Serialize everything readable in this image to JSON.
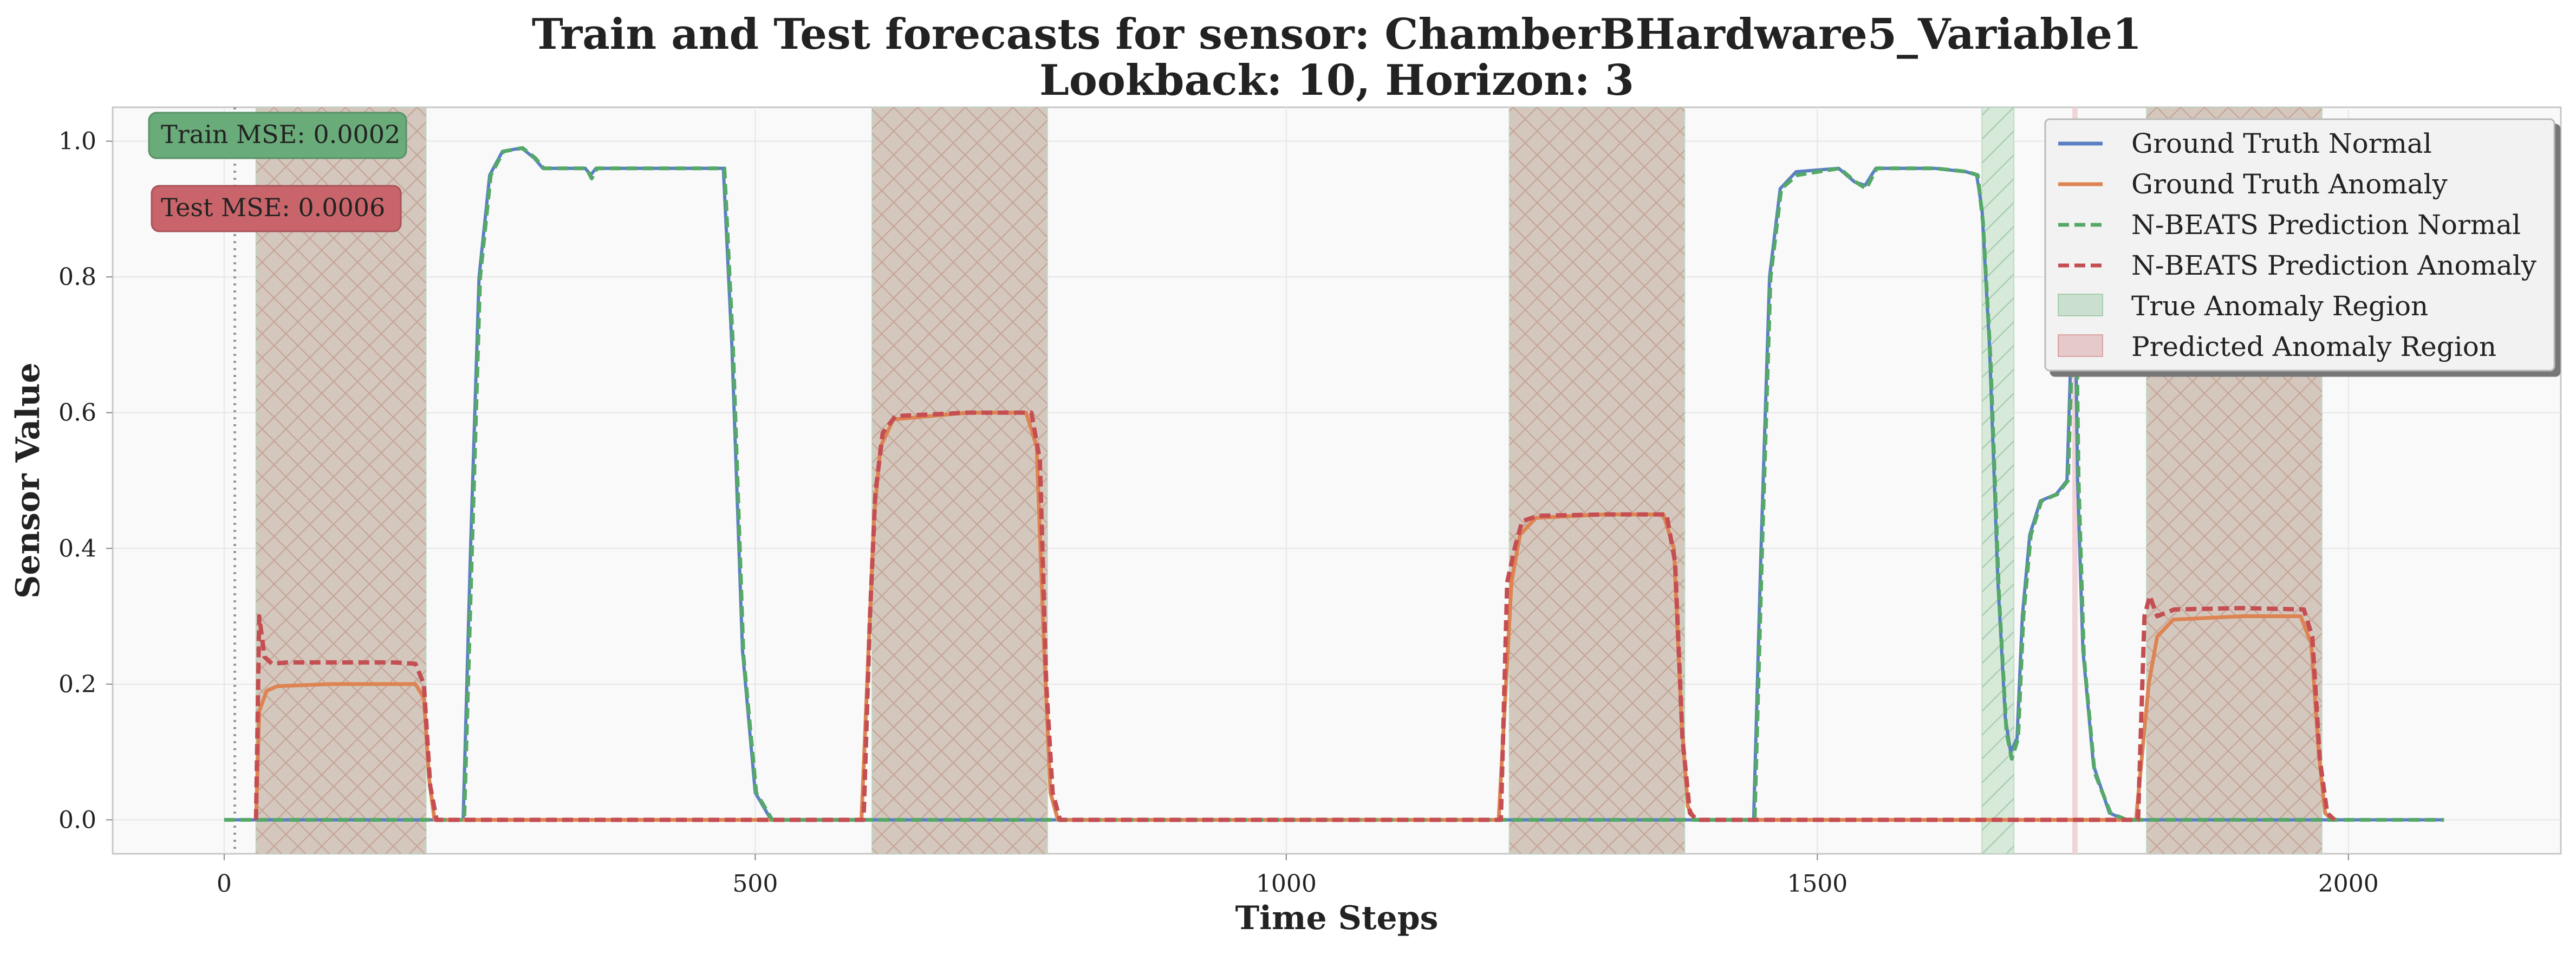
{
  "chart_data": {
    "type": "line",
    "title_line1": "Train and Test forecasts for sensor: ChamberBHardware5_Variable1",
    "title_line2": "Lookback: 10, Horizon: 3",
    "xlabel": "Time Steps",
    "ylabel": "Sensor Value",
    "xlim": [
      -105,
      2200
    ],
    "ylim": [
      -0.05,
      1.05
    ],
    "x_ticks": [
      0,
      500,
      1000,
      1500,
      2000
    ],
    "y_ticks": [
      0.0,
      0.2,
      0.4,
      0.6,
      0.8,
      1.0
    ],
    "x_tick_labels": [
      "0",
      "500",
      "1000",
      "1500",
      "2000"
    ],
    "y_tick_labels": [
      "0.0",
      "0.2",
      "0.4",
      "0.6",
      "0.8",
      "1.0"
    ],
    "grid": true,
    "legend_position": "top-right",
    "train_test_split_x": 10,
    "annotations": {
      "train_mse": "Train MSE: 0.0002",
      "test_mse": "Test MSE: 0.0006"
    },
    "legend": [
      {
        "label": "Ground Truth Normal",
        "kind": "solid",
        "color": "#5a7fc3"
      },
      {
        "label": "Ground Truth Anomaly",
        "kind": "solid",
        "color": "#dd8452"
      },
      {
        "label": "N-BEATS Prediction Normal",
        "kind": "dashed",
        "color": "#55a868"
      },
      {
        "label": "N-BEATS Prediction Anomaly",
        "kind": "dashed",
        "color": "#c44e52"
      },
      {
        "label": "True Anomaly Region",
        "kind": "patch",
        "color": "#55a868"
      },
      {
        "label": "Predicted Anomaly Region",
        "kind": "patch",
        "color": "#c44e52"
      }
    ],
    "colors": {
      "gt_normal": "#5a7fc3",
      "gt_anomaly": "#dd8452",
      "pred_normal": "#55a868",
      "pred_anomaly": "#c44e52",
      "overlap_region": "#d3c6bb",
      "true_region": "#d4e9d7",
      "predicted_region": "#efcfd3",
      "train_box": "#6aab7a",
      "test_box": "#c9656a"
    },
    "true_anomaly_regions": [
      [
        30,
        190
      ],
      [
        610,
        775
      ],
      [
        1210,
        1375
      ],
      [
        1655,
        1685
      ],
      [
        1810,
        1975
      ]
    ],
    "predicted_anomaly_regions": [
      [
        30,
        190
      ],
      [
        610,
        775
      ],
      [
        1210,
        1375
      ],
      [
        1740,
        1745
      ],
      [
        1810,
        1975
      ]
    ],
    "series": [
      {
        "name": "Ground Truth Normal",
        "points": [
          [
            0,
            0
          ],
          [
            225,
            0
          ],
          [
            232,
            0.4
          ],
          [
            240,
            0.8
          ],
          [
            250,
            0.95
          ],
          [
            262,
            0.985
          ],
          [
            280,
            0.99
          ],
          [
            292,
            0.975
          ],
          [
            300,
            0.96
          ],
          [
            340,
            0.96
          ],
          [
            345,
            0.95
          ],
          [
            350,
            0.96
          ],
          [
            470,
            0.96
          ],
          [
            478,
            0.7
          ],
          [
            488,
            0.25
          ],
          [
            500,
            0.04
          ],
          [
            515,
            0
          ],
          [
            1440,
            0
          ],
          [
            1447,
            0.4
          ],
          [
            1455,
            0.8
          ],
          [
            1465,
            0.93
          ],
          [
            1480,
            0.955
          ],
          [
            1520,
            0.96
          ],
          [
            1535,
            0.94
          ],
          [
            1545,
            0.935
          ],
          [
            1555,
            0.96
          ],
          [
            1575,
            0.96
          ],
          [
            1610,
            0.96
          ],
          [
            1640,
            0.955
          ],
          [
            1650,
            0.95
          ],
          [
            1655,
            0.9
          ],
          [
            1662,
            0.7
          ],
          [
            1670,
            0.35
          ],
          [
            1677,
            0.15
          ],
          [
            1682,
            0.1
          ],
          [
            1688,
            0.12
          ],
          [
            1693,
            0.3
          ],
          [
            1700,
            0.42
          ],
          [
            1710,
            0.47
          ],
          [
            1725,
            0.48
          ],
          [
            1735,
            0.5
          ],
          [
            1742,
            0.85
          ],
          [
            1745,
            0.5
          ],
          [
            1750,
            0.25
          ],
          [
            1760,
            0.08
          ],
          [
            1775,
            0.01
          ],
          [
            1790,
            0
          ],
          [
            2090,
            0
          ]
        ]
      },
      {
        "name": "Ground Truth Anomaly",
        "points": [
          [
            30,
            0
          ],
          [
            33,
            0.16
          ],
          [
            40,
            0.19
          ],
          [
            50,
            0.197
          ],
          [
            100,
            0.2
          ],
          [
            160,
            0.2
          ],
          [
            180,
            0.2
          ],
          [
            188,
            0.18
          ],
          [
            193,
            0.06
          ],
          [
            198,
            0
          ],
          [
            210,
            0
          ],
          [
            600,
            0
          ],
          [
            612,
            0.45
          ],
          [
            618,
            0.55
          ],
          [
            630,
            0.59
          ],
          [
            700,
            0.6
          ],
          [
            755,
            0.6
          ],
          [
            765,
            0.55
          ],
          [
            772,
            0.25
          ],
          [
            778,
            0.04
          ],
          [
            785,
            0
          ],
          [
            1200,
            0
          ],
          [
            1212,
            0.35
          ],
          [
            1220,
            0.42
          ],
          [
            1235,
            0.445
          ],
          [
            1300,
            0.45
          ],
          [
            1355,
            0.45
          ],
          [
            1365,
            0.4
          ],
          [
            1372,
            0.15
          ],
          [
            1378,
            0.02
          ],
          [
            1385,
            0
          ],
          [
            1800,
            0
          ],
          [
            1812,
            0.2
          ],
          [
            1820,
            0.27
          ],
          [
            1835,
            0.295
          ],
          [
            1900,
            0.3
          ],
          [
            1955,
            0.3
          ],
          [
            1965,
            0.26
          ],
          [
            1972,
            0.1
          ],
          [
            1978,
            0.01
          ],
          [
            1985,
            0
          ]
        ]
      },
      {
        "name": "N-BEATS Prediction Normal",
        "points": [
          [
            0,
            0
          ],
          [
            226,
            0
          ],
          [
            233,
            0.38
          ],
          [
            241,
            0.8
          ],
          [
            251,
            0.95
          ],
          [
            263,
            0.985
          ],
          [
            281,
            0.99
          ],
          [
            293,
            0.975
          ],
          [
            301,
            0.96
          ],
          [
            341,
            0.96
          ],
          [
            346,
            0.945
          ],
          [
            351,
            0.96
          ],
          [
            471,
            0.96
          ],
          [
            479,
            0.7
          ],
          [
            489,
            0.24
          ],
          [
            501,
            0.04
          ],
          [
            516,
            0
          ],
          [
            1441,
            0
          ],
          [
            1448,
            0.4
          ],
          [
            1456,
            0.8
          ],
          [
            1466,
            0.93
          ],
          [
            1481,
            0.95
          ],
          [
            1521,
            0.96
          ],
          [
            1536,
            0.94
          ],
          [
            1546,
            0.93
          ],
          [
            1556,
            0.96
          ],
          [
            1611,
            0.96
          ],
          [
            1641,
            0.955
          ],
          [
            1651,
            0.95
          ],
          [
            1656,
            0.88
          ],
          [
            1663,
            0.68
          ],
          [
            1671,
            0.33
          ],
          [
            1678,
            0.13
          ],
          [
            1683,
            0.09
          ],
          [
            1689,
            0.12
          ],
          [
            1694,
            0.3
          ],
          [
            1701,
            0.42
          ],
          [
            1711,
            0.47
          ],
          [
            1726,
            0.48
          ],
          [
            1736,
            0.5
          ],
          [
            1743,
            0.85
          ],
          [
            1746,
            0.5
          ],
          [
            1751,
            0.24
          ],
          [
            1761,
            0.07
          ],
          [
            1776,
            0.01
          ],
          [
            1791,
            0
          ],
          [
            2090,
            0
          ]
        ]
      },
      {
        "name": "N-BEATS Prediction Anomaly",
        "points": [
          [
            30,
            0
          ],
          [
            33,
            0.3
          ],
          [
            38,
            0.24
          ],
          [
            45,
            0.23
          ],
          [
            60,
            0.232
          ],
          [
            100,
            0.232
          ],
          [
            160,
            0.232
          ],
          [
            180,
            0.23
          ],
          [
            188,
            0.2
          ],
          [
            194,
            0.05
          ],
          [
            200,
            0
          ],
          [
            602,
            0
          ],
          [
            608,
            0.3
          ],
          [
            613,
            0.48
          ],
          [
            620,
            0.57
          ],
          [
            632,
            0.595
          ],
          [
            700,
            0.6
          ],
          [
            760,
            0.6
          ],
          [
            768,
            0.53
          ],
          [
            774,
            0.2
          ],
          [
            780,
            0.04
          ],
          [
            787,
            0
          ],
          [
            1202,
            0
          ],
          [
            1208,
            0.35
          ],
          [
            1215,
            0.4
          ],
          [
            1222,
            0.44
          ],
          [
            1237,
            0.448
          ],
          [
            1300,
            0.45
          ],
          [
            1358,
            0.45
          ],
          [
            1366,
            0.38
          ],
          [
            1373,
            0.12
          ],
          [
            1380,
            0.01
          ],
          [
            1387,
            0
          ],
          [
            1802,
            0
          ],
          [
            1808,
            0.3
          ],
          [
            1813,
            0.33
          ],
          [
            1820,
            0.3
          ],
          [
            1836,
            0.31
          ],
          [
            1900,
            0.312
          ],
          [
            1958,
            0.31
          ],
          [
            1966,
            0.27
          ],
          [
            1973,
            0.09
          ],
          [
            1980,
            0.01
          ],
          [
            1987,
            0
          ]
        ]
      }
    ]
  }
}
